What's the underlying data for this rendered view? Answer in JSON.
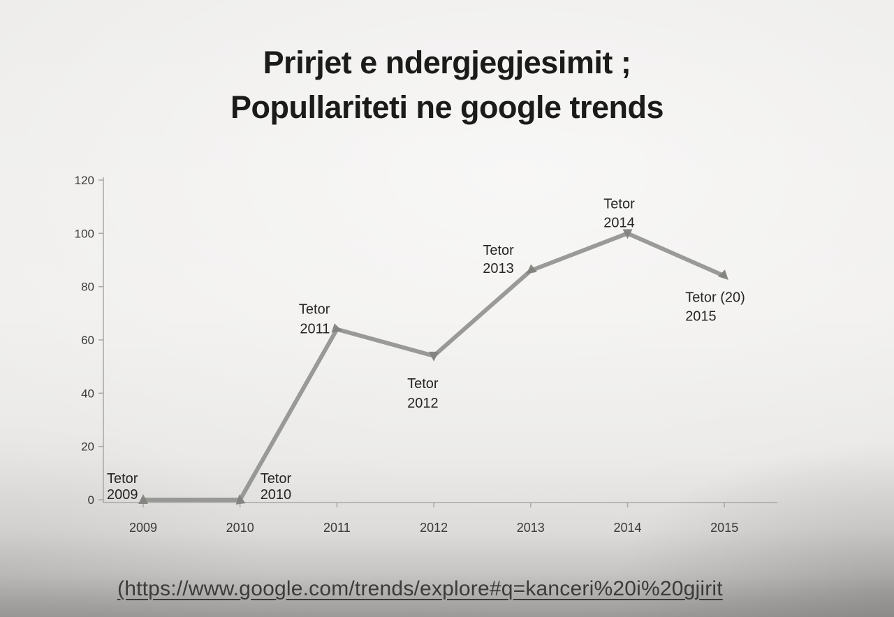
{
  "page": {
    "title_line1": "Prirjet e ndergjegjesimit ;",
    "title_line2": "Popullariteti ne google trends",
    "source_link": "(https://www.google.com/trends/explore#q=kanceri%20i%20gjirit"
  },
  "chart_data": {
    "type": "line",
    "title": "Prirjet e ndergjegjesimit ; Popullariteti ne google trends",
    "categories": [
      "2009",
      "2010",
      "2011",
      "2012",
      "2013",
      "2014",
      "2015"
    ],
    "series": [
      {
        "name": "Popullariteti ne google trends",
        "values": [
          0,
          0,
          64,
          54,
          86,
          100,
          84
        ]
      }
    ],
    "point_labels": [
      {
        "line1": "Tetor",
        "line2": "2009"
      },
      {
        "line1": "Tetor",
        "line2": "2010"
      },
      {
        "line1": "Tetor",
        "line2": "2011"
      },
      {
        "line1": "Tetor",
        "line2": "2012"
      },
      {
        "line1": "Tetor",
        "line2": "2013"
      },
      {
        "line1": "Tetor",
        "line2": "2014"
      },
      {
        "line1": "Tetor (20)",
        "line2": "2015"
      }
    ],
    "y_ticks": [
      0,
      20,
      40,
      60,
      80,
      100,
      120
    ],
    "ylim": [
      0,
      120
    ],
    "xlabel": "",
    "ylabel": "",
    "grid": false,
    "legend": "none",
    "line_color": "#91918f",
    "marker_color": "#82827e",
    "axis_color": "#a8a7a5",
    "label_color": "#252523"
  }
}
